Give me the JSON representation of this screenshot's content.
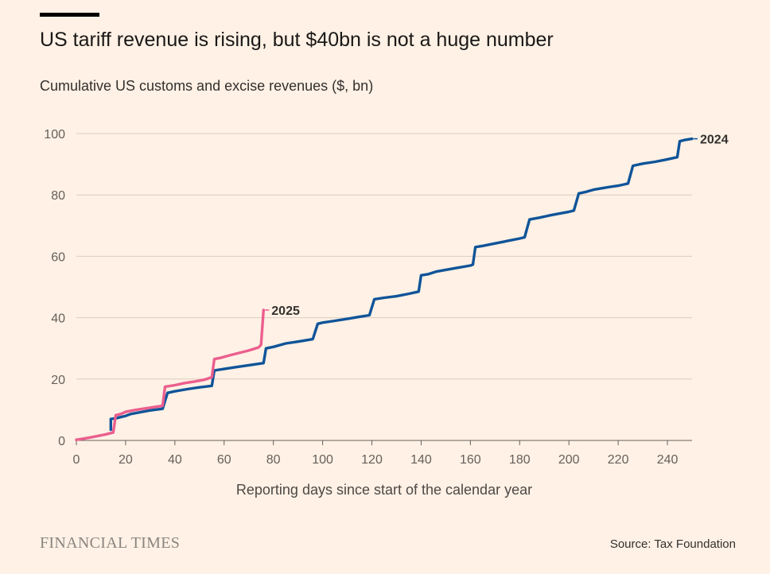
{
  "header": {
    "title": "US tariff revenue is rising, but $40bn is not a huge number",
    "subtitle": "Cumulative US customs and excise revenues ($, bn)"
  },
  "footer": {
    "brand": "FINANCIAL TIMES",
    "source": "Source: Tax Foundation"
  },
  "chart_data": {
    "type": "line",
    "title": "US tariff revenue is rising, but $40bn is not a huge number",
    "subtitle": "Cumulative US customs and excise revenues ($, bn)",
    "xlabel": "Reporting days since start of the calendar year",
    "ylabel": "",
    "xlim": [
      0,
      250
    ],
    "ylim": [
      0,
      100
    ],
    "xticks": [
      0,
      20,
      40,
      60,
      80,
      100,
      120,
      140,
      160,
      180,
      200,
      220,
      240
    ],
    "yticks": [
      0,
      20,
      40,
      60,
      80,
      100
    ],
    "grid": true,
    "legend": "direct labels at line ends",
    "series": [
      {
        "name": "2024",
        "color": "#0f5499",
        "points": [
          [
            14,
            3.5
          ],
          [
            14,
            7
          ],
          [
            16,
            7.2
          ],
          [
            20,
            8
          ],
          [
            22,
            8.6
          ],
          [
            26,
            9.2
          ],
          [
            30,
            9.8
          ],
          [
            35,
            10.3
          ],
          [
            37,
            15.5
          ],
          [
            40,
            16
          ],
          [
            45,
            16.7
          ],
          [
            50,
            17.3
          ],
          [
            55,
            17.8
          ],
          [
            56,
            22.8
          ],
          [
            60,
            23.3
          ],
          [
            65,
            23.9
          ],
          [
            70,
            24.5
          ],
          [
            76,
            25.2
          ],
          [
            77,
            30.0
          ],
          [
            80,
            30.5
          ],
          [
            85,
            31.6
          ],
          [
            90,
            32.2
          ],
          [
            96,
            33.0
          ],
          [
            98,
            38.0
          ],
          [
            100,
            38.4
          ],
          [
            105,
            39.0
          ],
          [
            110,
            39.6
          ],
          [
            115,
            40.3
          ],
          [
            119,
            40.8
          ],
          [
            121,
            46.0
          ],
          [
            125,
            46.5
          ],
          [
            130,
            47.0
          ],
          [
            135,
            47.8
          ],
          [
            139,
            48.5
          ],
          [
            140,
            53.8
          ],
          [
            143,
            54.2
          ],
          [
            146,
            55.0
          ],
          [
            150,
            55.6
          ],
          [
            155,
            56.3
          ],
          [
            160,
            57.0
          ],
          [
            161,
            57.3
          ],
          [
            162,
            63.0
          ],
          [
            165,
            63.4
          ],
          [
            170,
            64.2
          ],
          [
            175,
            65.0
          ],
          [
            180,
            65.8
          ],
          [
            182,
            66.2
          ],
          [
            184,
            72.0
          ],
          [
            188,
            72.6
          ],
          [
            192,
            73.3
          ],
          [
            196,
            73.9
          ],
          [
            200,
            74.5
          ],
          [
            202,
            74.9
          ],
          [
            204,
            80.5
          ],
          [
            207,
            81.0
          ],
          [
            210,
            81.7
          ],
          [
            215,
            82.4
          ],
          [
            220,
            83.0
          ],
          [
            224,
            83.7
          ],
          [
            226,
            89.5
          ],
          [
            230,
            90.2
          ],
          [
            235,
            90.8
          ],
          [
            240,
            91.6
          ],
          [
            244,
            92.3
          ],
          [
            245,
            97.5
          ],
          [
            247,
            97.9
          ],
          [
            250,
            98.3
          ]
        ]
      },
      {
        "name": "2025",
        "color": "#eb5e8d",
        "points": [
          [
            0,
            0.2
          ],
          [
            3,
            0.6
          ],
          [
            6,
            1.0
          ],
          [
            9,
            1.5
          ],
          [
            12,
            2.0
          ],
          [
            15,
            2.6
          ],
          [
            16,
            8.2
          ],
          [
            18,
            8.6
          ],
          [
            20,
            9.3
          ],
          [
            23,
            9.8
          ],
          [
            27,
            10.3
          ],
          [
            31,
            10.8
          ],
          [
            35,
            11.3
          ],
          [
            36,
            17.5
          ],
          [
            40,
            18.0
          ],
          [
            44,
            18.7
          ],
          [
            48,
            19.2
          ],
          [
            52,
            19.8
          ],
          [
            55,
            20.6
          ],
          [
            56,
            26.5
          ],
          [
            59,
            27.0
          ],
          [
            62,
            27.7
          ],
          [
            66,
            28.5
          ],
          [
            70,
            29.3
          ],
          [
            74,
            30.3
          ],
          [
            75,
            31.2
          ],
          [
            76,
            42.5
          ]
        ]
      }
    ]
  }
}
